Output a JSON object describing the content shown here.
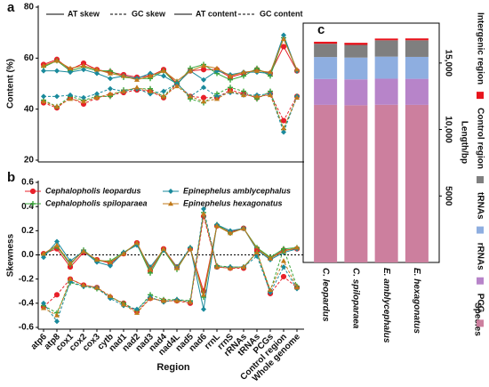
{
  "chart_data": [
    {
      "type": "line",
      "label": "a",
      "ylabel": "Content (%)",
      "ylim": [
        20,
        80
      ],
      "yticks": [
        20,
        40,
        60,
        80
      ],
      "legend": [
        {
          "label": "AT skew",
          "dashed": false
        },
        {
          "label": "GC skew",
          "dashed": true
        },
        {
          "label": "AT content",
          "dashed": false
        },
        {
          "label": "GC content",
          "dashed": true
        }
      ],
      "series": [
        {
          "color": "#e8202a",
          "marker": "circle",
          "dashed": false,
          "values": [
            57.5,
            59.5,
            55.5,
            58,
            55.5,
            54.5,
            53.5,
            52.5,
            53,
            55.5,
            50,
            55,
            55.5,
            55.5,
            52.5,
            54,
            55.5,
            54,
            64.5,
            55
          ]
        },
        {
          "color": "#3aa53a",
          "marker": "plus",
          "dashed": false,
          "values": [
            56.5,
            59,
            55,
            56.5,
            55,
            55,
            52.5,
            52,
            52,
            55,
            49.5,
            56,
            57.5,
            54,
            51.5,
            53,
            56,
            53,
            68,
            55
          ]
        },
        {
          "color": "#1a8a9c",
          "marker": "diamond",
          "dashed": false,
          "values": [
            55,
            55,
            54.5,
            55.5,
            54,
            52,
            53,
            52,
            54,
            53,
            50,
            55,
            51.5,
            55,
            53.5,
            54.5,
            54.5,
            54,
            69,
            55
          ]
        },
        {
          "color": "#c07a1a",
          "marker": "triangle",
          "dashed": false,
          "values": [
            57,
            59,
            56,
            57,
            55.5,
            54,
            53,
            51.5,
            53,
            55,
            51,
            55,
            57,
            56,
            53,
            54.5,
            55,
            54.5,
            67.5,
            55.5
          ]
        },
        {
          "color": "#e8202a",
          "marker": "circle",
          "dashed": true,
          "values": [
            42.5,
            40.5,
            44.5,
            42,
            44.5,
            45.5,
            46.5,
            47.5,
            47,
            44.5,
            50,
            45,
            44.5,
            44.5,
            47.5,
            46,
            44.5,
            46,
            35.5,
            45
          ]
        },
        {
          "color": "#3aa53a",
          "marker": "plus",
          "dashed": true,
          "values": [
            43.5,
            41,
            45,
            43.5,
            45,
            45,
            47.5,
            48,
            48,
            45,
            50.5,
            44,
            42.5,
            46,
            48.5,
            47,
            44,
            47,
            32,
            45
          ]
        },
        {
          "color": "#1a8a9c",
          "marker": "diamond",
          "dashed": true,
          "values": [
            45,
            45,
            45.5,
            44.5,
            46,
            48,
            47,
            48,
            46,
            47,
            50,
            45,
            48.5,
            45,
            46.5,
            45.5,
            45.5,
            46,
            31,
            45
          ]
        },
        {
          "color": "#c07a1a",
          "marker": "triangle",
          "dashed": true,
          "values": [
            43,
            41,
            44,
            43,
            44.5,
            46,
            47,
            48.5,
            47,
            45,
            49,
            45,
            43,
            44,
            47,
            45.5,
            45,
            45.5,
            32.5,
            44.5
          ]
        }
      ]
    },
    {
      "type": "line",
      "label": "b",
      "xlabel": "Region",
      "ylabel": "Skewness",
      "zero_line": true,
      "categories": [
        "atp6",
        "atp8",
        "cox1",
        "cox2",
        "cox3",
        "cytb",
        "nad1",
        "nad2",
        "nad3",
        "nad4",
        "nad4L",
        "nad5",
        "nad6",
        "rrnL",
        "rrnS",
        "rRNAs",
        "tRNAs",
        "PCGs",
        "Control region",
        "Whole genome"
      ],
      "ylim": [
        -0.6,
        0.6
      ],
      "yticks": [
        0.6,
        0.4,
        0.2,
        {
          "value": 0,
          "label": "0.0"
        },
        -0.2,
        -0.4,
        -0.6
      ],
      "series": [
        {
          "name": "Cephalopholis leopardus",
          "color": "#e8202a",
          "marker": "circle",
          "dashed": false,
          "values": [
            0.01,
            0.05,
            -0.1,
            0.02,
            -0.04,
            -0.07,
            0.01,
            0.1,
            -0.13,
            0.05,
            -0.1,
            0.05,
            -0.3,
            0.24,
            0.19,
            0.22,
            0.05,
            -0.03,
            0.04,
            0.05
          ]
        },
        {
          "name": "Cephalopholis spiloparaea",
          "color": "#3aa53a",
          "marker": "plus",
          "dashed": false,
          "values": [
            0,
            0.07,
            -0.08,
            0.04,
            -0.05,
            -0.05,
            0.02,
            0.09,
            -0.15,
            0.04,
            -0.12,
            0.06,
            -0.35,
            0.25,
            0.18,
            0.22,
            0.06,
            -0.02,
            0.05,
            0.06
          ]
        },
        {
          "name": "Epinephelus amblycephalus",
          "color": "#1a8a9c",
          "marker": "diamond",
          "dashed": false,
          "values": [
            -0.02,
            0.11,
            -0.05,
            0.03,
            -0.06,
            -0.09,
            0.02,
            0.08,
            -0.1,
            0.04,
            -0.1,
            0.06,
            -0.45,
            0.25,
            0.2,
            0.22,
            0.04,
            -0.04,
            0.02,
            0.05
          ]
        },
        {
          "name": "Epinephelus hexagonatus",
          "color": "#c07a1a",
          "marker": "triangle",
          "dashed": false,
          "values": [
            0.01,
            0.08,
            -0.07,
            0.03,
            -0.04,
            -0.06,
            0.01,
            0.1,
            -0.12,
            0.05,
            -0.11,
            0.05,
            -0.33,
            0.24,
            0.18,
            0.22,
            0.05,
            -0.03,
            0.03,
            0.06
          ]
        },
        {
          "color": "#e8202a",
          "marker": "circle",
          "dashed": true,
          "values": [
            -0.43,
            -0.33,
            -0.2,
            -0.25,
            -0.27,
            -0.35,
            -0.4,
            -0.47,
            -0.36,
            -0.38,
            -0.38,
            -0.4,
            0.32,
            -0.1,
            -0.11,
            -0.11,
            0.03,
            -0.32,
            -0.18,
            -0.27
          ]
        },
        {
          "color": "#3aa53a",
          "marker": "plus",
          "dashed": true,
          "values": [
            -0.42,
            -0.48,
            -0.23,
            -0.26,
            -0.28,
            -0.35,
            -0.4,
            -0.46,
            -0.33,
            -0.37,
            -0.37,
            -0.38,
            0.35,
            -0.09,
            -0.1,
            -0.1,
            0.02,
            -0.3,
            0.05,
            -0.26
          ]
        },
        {
          "color": "#1a8a9c",
          "marker": "diamond",
          "dashed": true,
          "values": [
            -0.4,
            -0.55,
            -0.22,
            -0.26,
            -0.27,
            -0.36,
            -0.42,
            -0.45,
            -0.35,
            -0.39,
            -0.37,
            -0.39,
            0.38,
            -0.1,
            -0.1,
            -0.1,
            -0.01,
            -0.31,
            -0.1,
            -0.28
          ]
        },
        {
          "color": "#c07a1a",
          "marker": "triangle",
          "dashed": true,
          "values": [
            -0.44,
            -0.5,
            -0.2,
            -0.25,
            -0.27,
            -0.34,
            -0.41,
            -0.48,
            -0.36,
            -0.38,
            -0.38,
            -0.39,
            0.34,
            -0.1,
            -0.11,
            -0.1,
            0.02,
            -0.29,
            -0.05,
            -0.27
          ]
        }
      ]
    },
    {
      "type": "bar",
      "stacked": true,
      "label": "c",
      "xlabel": "Species",
      "ylabel": "Length/bp",
      "categories": [
        "C. leopardus",
        "C. spiloparaea",
        "E. amblycephalus",
        "E. hexagonatus"
      ],
      "ylim": [
        0,
        18000
      ],
      "yticks": [
        5000,
        {
          "value": 10000,
          "label": "10,000"
        },
        {
          "value": 15000,
          "label": "15,000"
        }
      ],
      "series": [
        {
          "name": "PCG",
          "color": "#cc7f9e",
          "values": [
            11850,
            11820,
            11860,
            11850
          ]
        },
        {
          "name": "rRNAs",
          "color": "#b784c9",
          "values": [
            1950,
            1950,
            1960,
            1960
          ]
        },
        {
          "name": "tRNAs",
          "color": "#8eaee0",
          "values": [
            1650,
            1640,
            1660,
            1650
          ]
        },
        {
          "name": "Control region",
          "color": "#7f7f7f",
          "values": [
            1000,
            950,
            1230,
            1250
          ]
        },
        {
          "name": "Intergenic region",
          "color": "#e8141c",
          "values": [
            150,
            160,
            130,
            140
          ]
        }
      ]
    }
  ]
}
